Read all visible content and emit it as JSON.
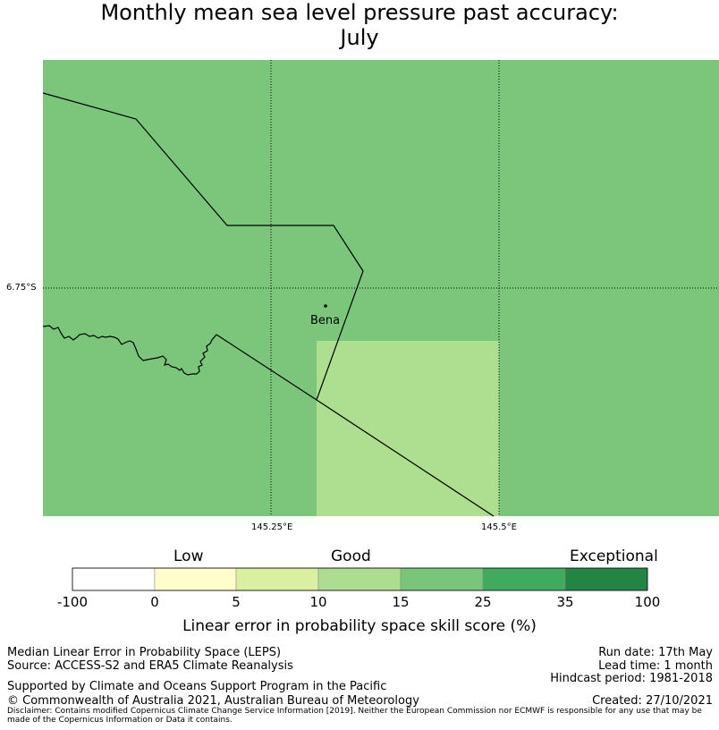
{
  "title": {
    "line1": "Monthly mean sea level pressure past accuracy:",
    "line2": "July"
  },
  "map": {
    "lat_label": "6.75°S",
    "lon_labels": [
      "145.25°E",
      "145.5°E"
    ],
    "place": "Bena",
    "colors": {
      "good_band": "#7ac67b",
      "lower_band": "#addf8f"
    }
  },
  "colorbar": {
    "categories": [
      "Low",
      "Good",
      "Exceptional"
    ],
    "ticks": [
      "-100",
      "0",
      "5",
      "10",
      "15",
      "25",
      "35",
      "100"
    ],
    "colors": [
      "#ffffff",
      "#ffffcc",
      "#d9f0a3",
      "#addd8e",
      "#78c679",
      "#41ab5d",
      "#238443"
    ],
    "title": "Linear error in probability space skill score (%)"
  },
  "footer": {
    "left1": "Median Linear Error in Probability Space (LEPS)",
    "left2": "Source: ACCESS-S2 and ERA5 Climate Reanalysis",
    "left3": "Supported by Climate and Oceans Support Program in the Pacific",
    "left4": "© Commonwealth of Australia 2021, Australian Bureau of Meteorology",
    "right1": "Run date: 17th May",
    "right2": "Lead time: 1 month",
    "right3": "Hindcast period: 1981-2018",
    "right4": "Created: 27/10/2021",
    "disclaimer": "Disclaimer: Contains modified Copernicus Climate Change Service Information [2019]. Neither the European Commission nor ECMWF is responsible for any use that may be made of the Copernicus Information or Data it contains."
  }
}
